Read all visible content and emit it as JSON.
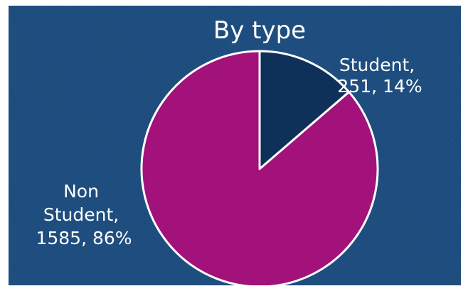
{
  "chart_data": {
    "type": "pie",
    "title": "By type",
    "slices": [
      {
        "label_lines": [
          "Student,",
          "251, 14%"
        ],
        "value": 251,
        "percent": 14,
        "color": "#0f3058"
      },
      {
        "label_lines": [
          "Non",
          "Student,",
          "1585, 86%"
        ],
        "value": 1585,
        "percent": 86,
        "color": "#a3117a"
      }
    ],
    "start_angle_deg": 0,
    "direction": "clockwise",
    "slice_border_color": "#ffffff",
    "background_color": "#1b4b7d"
  }
}
